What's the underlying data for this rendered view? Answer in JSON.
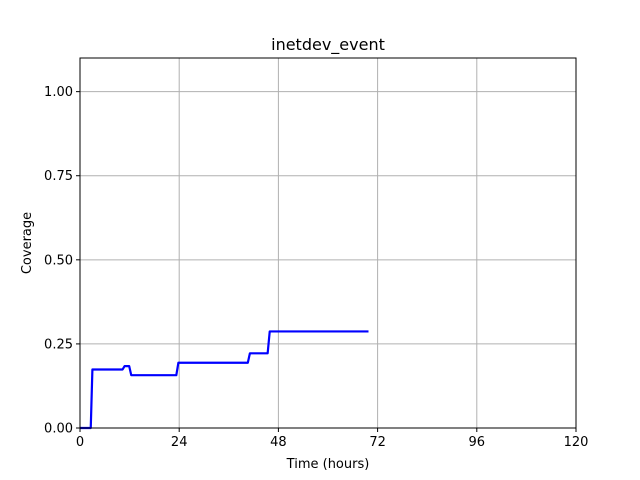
{
  "chart_data": {
    "type": "line",
    "title": "inetdev_event",
    "xlabel": "Time (hours)",
    "ylabel": "Coverage",
    "xlim": [
      0,
      120
    ],
    "ylim": [
      0,
      1.1
    ],
    "xticks": [
      0,
      24,
      48,
      72,
      96,
      120
    ],
    "xtick_labels": [
      "0",
      "24",
      "48",
      "72",
      "96",
      "120"
    ],
    "yticks": [
      0,
      0.25,
      0.5,
      0.75,
      1.0
    ],
    "ytick_labels": [
      "0.00",
      "0.25",
      "0.50",
      "0.75",
      "1.00"
    ],
    "grid": true,
    "series": [
      {
        "color": "#0000ff",
        "points": [
          [
            0,
            0
          ],
          [
            2.6,
            0
          ],
          [
            3.0,
            0.174
          ],
          [
            10.3,
            0.174
          ],
          [
            10.8,
            0.184
          ],
          [
            11.9,
            0.184
          ],
          [
            12.4,
            0.157
          ],
          [
            23.3,
            0.157
          ],
          [
            23.8,
            0.194
          ],
          [
            40.6,
            0.194
          ],
          [
            41.1,
            0.222
          ],
          [
            45.4,
            0.222
          ],
          [
            45.9,
            0.287
          ],
          [
            69.8,
            0.287
          ]
        ]
      }
    ]
  }
}
